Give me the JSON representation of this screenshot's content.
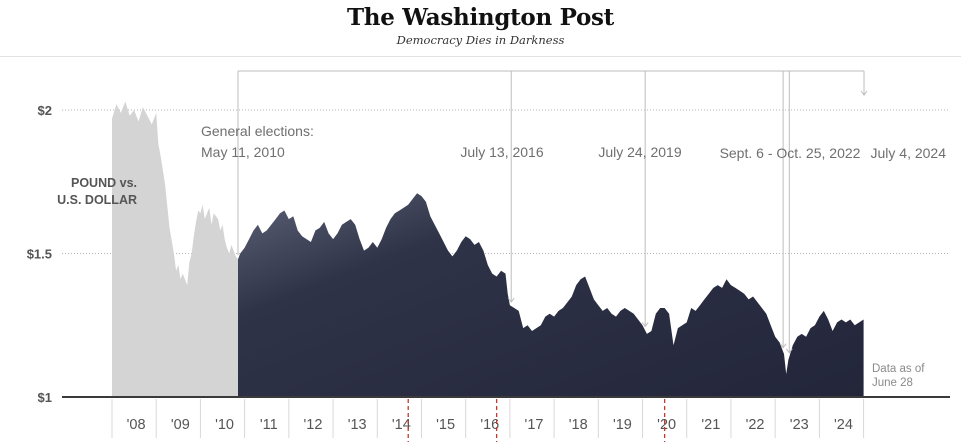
{
  "masthead": {
    "logo": "The Washington Post",
    "slogan": "Democracy Dies in Darkness"
  },
  "colors": {
    "pre_2010_area": "#d4d4d4",
    "photo_area": "#3d4257",
    "photo_area_light": "#c9cbd6",
    "gridline": "#b5b5b5",
    "annotation_line": "#bdbdbd",
    "axis": "#3a3a3a",
    "red_dash": "#c0392b"
  },
  "chart_data": {
    "type": "area",
    "series_label_lines": [
      "POUND vs.",
      "U.S. DOLLAR"
    ],
    "ylim": [
      1.0,
      2.0
    ],
    "xlim": [
      2007.5,
      2024.6
    ],
    "y_ticks": [
      {
        "value": 2.0,
        "label": "$2"
      },
      {
        "value": 1.5,
        "label": "$1.5"
      },
      {
        "value": 1.0,
        "label": "$1"
      }
    ],
    "x_ticks": [
      {
        "value": 2008.0,
        "label": "'08"
      },
      {
        "value": 2009.0,
        "label": "'09"
      },
      {
        "value": 2010.0,
        "label": "'10"
      },
      {
        "value": 2011.0,
        "label": "'11"
      },
      {
        "value": 2012.0,
        "label": "'12"
      },
      {
        "value": 2013.0,
        "label": "'13"
      },
      {
        "value": 2014.0,
        "label": "'14"
      },
      {
        "value": 2015.0,
        "label": "'15"
      },
      {
        "value": 2016.0,
        "label": "'16"
      },
      {
        "value": 2017.0,
        "label": "'17"
      },
      {
        "value": 2018.0,
        "label": "'18"
      },
      {
        "value": 2019.0,
        "label": "'19"
      },
      {
        "value": 2020.0,
        "label": "'20"
      },
      {
        "value": 2021.0,
        "label": "'21"
      },
      {
        "value": 2022.0,
        "label": "'22"
      },
      {
        "value": 2023.0,
        "label": "'23"
      },
      {
        "value": 2024.0,
        "label": "'24"
      }
    ],
    "red_dashed_years": [
      2014.2,
      2016.2,
      2020.0
    ],
    "points": [
      [
        2007.5,
        1.97
      ],
      [
        2007.6,
        2.02
      ],
      [
        2007.7,
        1.99
      ],
      [
        2007.8,
        2.03
      ],
      [
        2007.9,
        1.98
      ],
      [
        2008.0,
        2.0
      ],
      [
        2008.1,
        1.96
      ],
      [
        2008.2,
        2.01
      ],
      [
        2008.3,
        1.98
      ],
      [
        2008.4,
        1.95
      ],
      [
        2008.5,
        1.99
      ],
      [
        2008.55,
        1.88
      ],
      [
        2008.6,
        1.84
      ],
      [
        2008.7,
        1.74
      ],
      [
        2008.8,
        1.59
      ],
      [
        2008.9,
        1.5
      ],
      [
        2008.95,
        1.44
      ],
      [
        2009.0,
        1.46
      ],
      [
        2009.05,
        1.41
      ],
      [
        2009.1,
        1.43
      ],
      [
        2009.2,
        1.39
      ],
      [
        2009.25,
        1.47
      ],
      [
        2009.3,
        1.5
      ],
      [
        2009.35,
        1.56
      ],
      [
        2009.4,
        1.61
      ],
      [
        2009.45,
        1.65
      ],
      [
        2009.5,
        1.64
      ],
      [
        2009.55,
        1.67
      ],
      [
        2009.6,
        1.62
      ],
      [
        2009.7,
        1.66
      ],
      [
        2009.75,
        1.6
      ],
      [
        2009.8,
        1.64
      ],
      [
        2009.9,
        1.62
      ],
      [
        2009.95,
        1.58
      ],
      [
        2010.0,
        1.6
      ],
      [
        2010.05,
        1.55
      ],
      [
        2010.1,
        1.52
      ],
      [
        2010.15,
        1.5
      ],
      [
        2010.2,
        1.53
      ],
      [
        2010.3,
        1.49
      ],
      [
        2010.35,
        1.48
      ],
      [
        2010.4,
        1.5
      ],
      [
        2010.5,
        1.52
      ],
      [
        2010.6,
        1.55
      ],
      [
        2010.7,
        1.58
      ],
      [
        2010.8,
        1.6
      ],
      [
        2010.9,
        1.57
      ],
      [
        2011.0,
        1.58
      ],
      [
        2011.1,
        1.6
      ],
      [
        2011.2,
        1.62
      ],
      [
        2011.3,
        1.64
      ],
      [
        2011.4,
        1.65
      ],
      [
        2011.5,
        1.62
      ],
      [
        2011.6,
        1.63
      ],
      [
        2011.7,
        1.58
      ],
      [
        2011.8,
        1.56
      ],
      [
        2011.9,
        1.55
      ],
      [
        2012.0,
        1.54
      ],
      [
        2012.1,
        1.58
      ],
      [
        2012.2,
        1.59
      ],
      [
        2012.3,
        1.61
      ],
      [
        2012.4,
        1.57
      ],
      [
        2012.5,
        1.55
      ],
      [
        2012.6,
        1.57
      ],
      [
        2012.7,
        1.6
      ],
      [
        2012.8,
        1.61
      ],
      [
        2012.9,
        1.62
      ],
      [
        2013.0,
        1.6
      ],
      [
        2013.1,
        1.55
      ],
      [
        2013.2,
        1.51
      ],
      [
        2013.3,
        1.52
      ],
      [
        2013.4,
        1.54
      ],
      [
        2013.5,
        1.52
      ],
      [
        2013.6,
        1.55
      ],
      [
        2013.7,
        1.59
      ],
      [
        2013.8,
        1.62
      ],
      [
        2013.9,
        1.64
      ],
      [
        2014.0,
        1.65
      ],
      [
        2014.1,
        1.66
      ],
      [
        2014.2,
        1.67
      ],
      [
        2014.3,
        1.69
      ],
      [
        2014.4,
        1.71
      ],
      [
        2014.5,
        1.7
      ],
      [
        2014.6,
        1.68
      ],
      [
        2014.7,
        1.63
      ],
      [
        2014.8,
        1.6
      ],
      [
        2014.9,
        1.57
      ],
      [
        2015.0,
        1.54
      ],
      [
        2015.1,
        1.51
      ],
      [
        2015.2,
        1.49
      ],
      [
        2015.3,
        1.51
      ],
      [
        2015.4,
        1.54
      ],
      [
        2015.5,
        1.56
      ],
      [
        2015.6,
        1.55
      ],
      [
        2015.7,
        1.53
      ],
      [
        2015.8,
        1.54
      ],
      [
        2015.9,
        1.51
      ],
      [
        2016.0,
        1.46
      ],
      [
        2016.1,
        1.43
      ],
      [
        2016.2,
        1.42
      ],
      [
        2016.3,
        1.44
      ],
      [
        2016.4,
        1.43
      ],
      [
        2016.45,
        1.36
      ],
      [
        2016.5,
        1.32
      ],
      [
        2016.6,
        1.31
      ],
      [
        2016.7,
        1.3
      ],
      [
        2016.8,
        1.24
      ],
      [
        2016.9,
        1.25
      ],
      [
        2017.0,
        1.23
      ],
      [
        2017.1,
        1.24
      ],
      [
        2017.2,
        1.25
      ],
      [
        2017.3,
        1.28
      ],
      [
        2017.4,
        1.29
      ],
      [
        2017.5,
        1.28
      ],
      [
        2017.6,
        1.3
      ],
      [
        2017.7,
        1.31
      ],
      [
        2017.8,
        1.33
      ],
      [
        2017.9,
        1.35
      ],
      [
        2018.0,
        1.39
      ],
      [
        2018.1,
        1.41
      ],
      [
        2018.2,
        1.42
      ],
      [
        2018.3,
        1.38
      ],
      [
        2018.4,
        1.34
      ],
      [
        2018.5,
        1.32
      ],
      [
        2018.6,
        1.3
      ],
      [
        2018.7,
        1.31
      ],
      [
        2018.8,
        1.29
      ],
      [
        2018.9,
        1.28
      ],
      [
        2019.0,
        1.3
      ],
      [
        2019.1,
        1.31
      ],
      [
        2019.2,
        1.3
      ],
      [
        2019.3,
        1.29
      ],
      [
        2019.4,
        1.27
      ],
      [
        2019.5,
        1.25
      ],
      [
        2019.6,
        1.22
      ],
      [
        2019.7,
        1.23
      ],
      [
        2019.8,
        1.29
      ],
      [
        2019.9,
        1.31
      ],
      [
        2020.0,
        1.31
      ],
      [
        2020.1,
        1.29
      ],
      [
        2020.2,
        1.18
      ],
      [
        2020.3,
        1.24
      ],
      [
        2020.4,
        1.25
      ],
      [
        2020.5,
        1.26
      ],
      [
        2020.6,
        1.31
      ],
      [
        2020.7,
        1.3
      ],
      [
        2020.8,
        1.32
      ],
      [
        2020.9,
        1.34
      ],
      [
        2021.0,
        1.36
      ],
      [
        2021.1,
        1.38
      ],
      [
        2021.2,
        1.39
      ],
      [
        2021.3,
        1.38
      ],
      [
        2021.4,
        1.41
      ],
      [
        2021.5,
        1.39
      ],
      [
        2021.6,
        1.38
      ],
      [
        2021.7,
        1.37
      ],
      [
        2021.8,
        1.36
      ],
      [
        2021.9,
        1.34
      ],
      [
        2022.0,
        1.35
      ],
      [
        2022.1,
        1.33
      ],
      [
        2022.2,
        1.31
      ],
      [
        2022.3,
        1.29
      ],
      [
        2022.4,
        1.25
      ],
      [
        2022.5,
        1.21
      ],
      [
        2022.6,
        1.19
      ],
      [
        2022.7,
        1.15
      ],
      [
        2022.75,
        1.08
      ],
      [
        2022.8,
        1.13
      ],
      [
        2022.9,
        1.18
      ],
      [
        2023.0,
        1.21
      ],
      [
        2023.1,
        1.22
      ],
      [
        2023.2,
        1.21
      ],
      [
        2023.3,
        1.24
      ],
      [
        2023.4,
        1.25
      ],
      [
        2023.5,
        1.28
      ],
      [
        2023.6,
        1.3
      ],
      [
        2023.7,
        1.27
      ],
      [
        2023.8,
        1.23
      ],
      [
        2023.9,
        1.26
      ],
      [
        2024.0,
        1.27
      ],
      [
        2024.1,
        1.26
      ],
      [
        2024.2,
        1.27
      ],
      [
        2024.3,
        1.25
      ],
      [
        2024.4,
        1.26
      ],
      [
        2024.5,
        1.27
      ]
    ],
    "photo_start": 2010.35,
    "annotations": [
      {
        "name": "2010",
        "x": 2010.35,
        "line1": "General elections:",
        "line2": "May 11, 2010"
      },
      {
        "name": "2016",
        "x": 2016.53,
        "line1": "",
        "line2": "July 13, 2016"
      },
      {
        "name": "2019",
        "x": 2019.56,
        "line1": "",
        "line2": "July 24, 2019"
      },
      {
        "name": "2022",
        "x": 2022.68,
        "x_end": 2022.82,
        "line1": "",
        "line2": "Sept. 6 - Oct. 25, 2022"
      },
      {
        "name": "2024",
        "x": 2024.51,
        "line1": "",
        "line2": "July 4, 2024"
      }
    ],
    "note_lines": [
      "Data as of",
      "June 28"
    ]
  }
}
